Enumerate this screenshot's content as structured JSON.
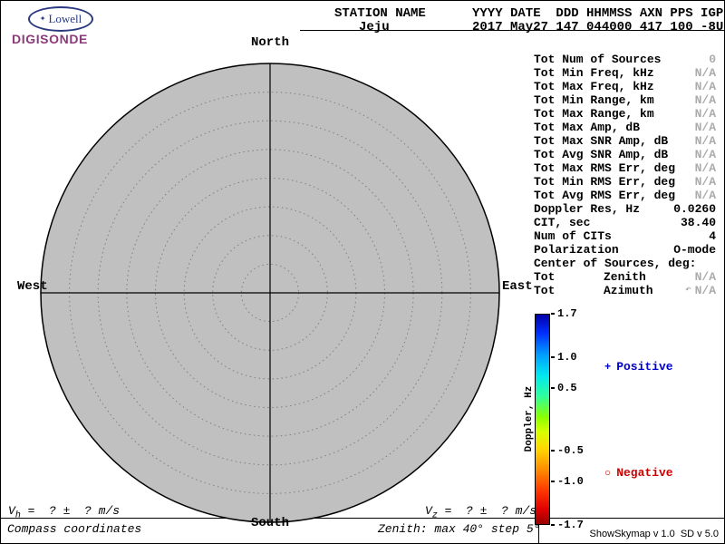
{
  "logo": {
    "name": "Lowell",
    "product": "DIGISONDE",
    "spark": "✦",
    "name_color": "#2b3a80",
    "product_color": "#8b3a7a"
  },
  "header": {
    "station_label": "STATION NAME",
    "station_value": "Jeju",
    "fields_label": "YYYY DATE  DDD HHMMSS AXN PPS IGP",
    "fields_value": "2017 May27 147 044000 417 100 -8U"
  },
  "compass": {
    "north": "North",
    "south": "South",
    "west": "West",
    "east": "East",
    "max_zenith_deg": 40,
    "step_deg": 5
  },
  "stats": {
    "rows": [
      {
        "label": "Tot Num of Sources",
        "value": "0",
        "muted": true
      },
      {
        "label": "Tot Min Freq, kHz",
        "value": "N/A",
        "muted": true
      },
      {
        "label": "Tot Max Freq, kHz",
        "value": "N/A",
        "muted": true
      },
      {
        "label": "Tot Min Range, km",
        "value": "N/A",
        "muted": true
      },
      {
        "label": "Tot Max Range, km",
        "value": "N/A",
        "muted": true
      },
      {
        "label": "Tot Max Amp, dB",
        "value": "N/A",
        "muted": true
      },
      {
        "label": "Tot Max SNR Amp, dB",
        "value": "N/A",
        "muted": true
      },
      {
        "label": "Tot Avg SNR Amp, dB",
        "value": "N/A",
        "muted": true
      },
      {
        "label": "Tot Max RMS Err, deg",
        "value": "N/A",
        "muted": true
      },
      {
        "label": "Tot Min RMS Err, deg",
        "value": "N/A",
        "muted": true
      },
      {
        "label": "Tot Avg RMS Err, deg",
        "value": "N/A",
        "muted": true
      },
      {
        "label": "Doppler Res, Hz",
        "value": "0.0260",
        "muted": false
      },
      {
        "label": "CIT, sec",
        "value": "38.40",
        "muted": false
      },
      {
        "label": "Num of CITs",
        "value": "4",
        "muted": false
      },
      {
        "label": "Polarization",
        "value": "O-mode",
        "muted": false
      },
      {
        "label": "Center of Sources, deg:",
        "value": "",
        "muted": false
      },
      {
        "label": "Tot",
        "mid": "Zenith",
        "value": "N/A",
        "muted": true
      },
      {
        "label": "Tot",
        "mid": "Azimuth",
        "icon": "↶",
        "value": "N/A",
        "muted": true
      }
    ]
  },
  "colorbar": {
    "title": "Doppler, Hz",
    "max": 1.7,
    "min": -1.7,
    "tick_values": [
      1.7,
      1.0,
      0.5,
      -0.5,
      -1.0,
      -1.7
    ],
    "gradient": [
      "#0000a8 0%",
      "#0030ff 9%",
      "#009cff 19%",
      "#00e8f0 29%",
      "#30ff9c 39%",
      "#8aff00 49%",
      "#d8ff00 56%",
      "#ffd800 64%",
      "#ff8c00 74%",
      "#ff3800 84%",
      "#e00000 93%",
      "#980000 100%"
    ],
    "positive": {
      "marker": "+",
      "label": "Positive",
      "color": "#0000cc"
    },
    "negative": {
      "marker": "○",
      "label": "Negative",
      "color": "#cc0000"
    }
  },
  "footer": {
    "vh": {
      "sym": "V",
      "sub": "h",
      "rest": " =  ? ±  ? m/s"
    },
    "vz": {
      "sym": "V",
      "sub": "z",
      "rest": " =  ? ±  ? m/s"
    },
    "coords_note": "Compass coordinates",
    "zenith_note": "Zenith: max 40° step 5°",
    "version": "ShowSkymap v 1.0  SD v 5.0"
  }
}
